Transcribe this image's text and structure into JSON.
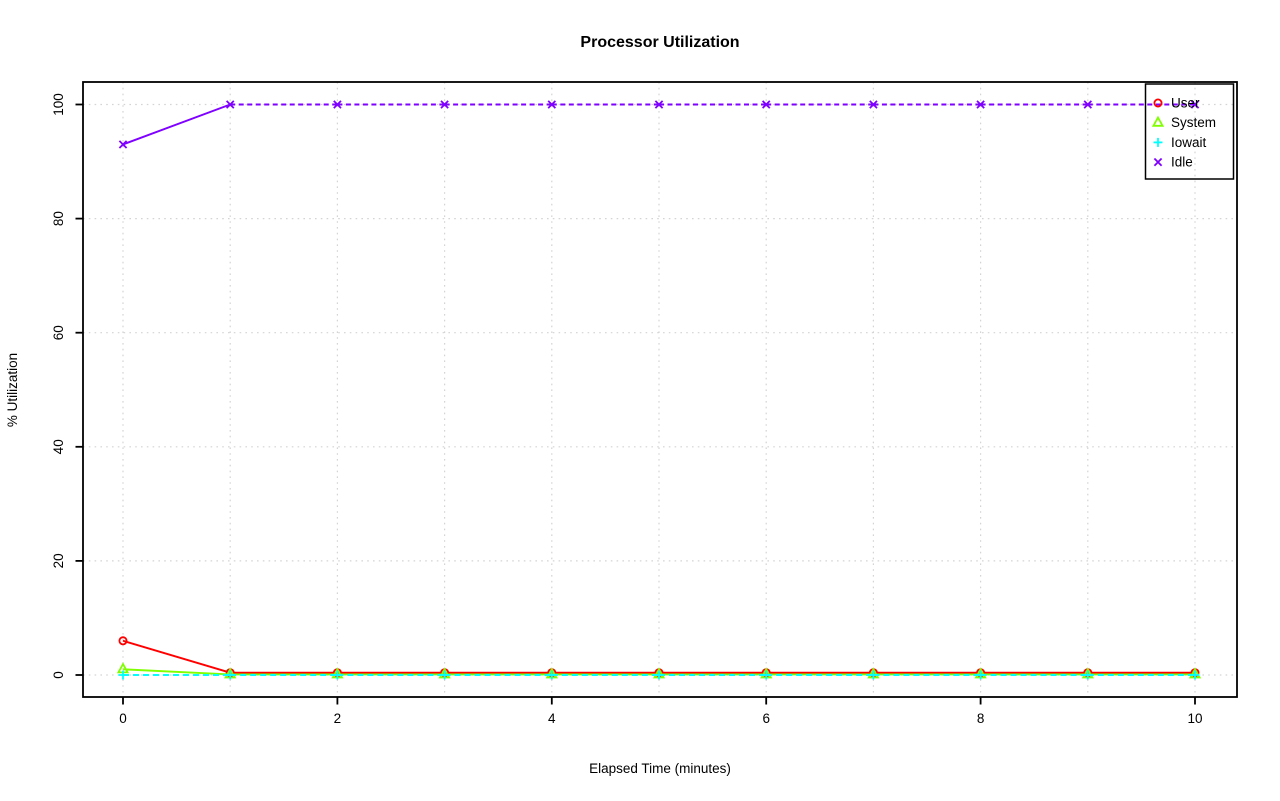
{
  "title": "Processor Utilization",
  "chart_data": {
    "type": "line",
    "title": "Processor Utilization",
    "xlabel": "Elapsed Time (minutes)",
    "ylabel": "% Utilization",
    "x": [
      0,
      1,
      2,
      3,
      4,
      5,
      6,
      7,
      8,
      9,
      10
    ],
    "x_ticks": [
      0,
      2,
      4,
      6,
      8,
      10
    ],
    "y_ticks": [
      0,
      20,
      40,
      60,
      80,
      100
    ],
    "xlim": [
      0,
      10
    ],
    "ylim": [
      0,
      100
    ],
    "grid": "dotted light-gray; vertical lines at every minute 0-10, horizontal lines at every y tick",
    "legend_position": "top-right",
    "background": "#ffffff",
    "grid_color": "#d4d4d4",
    "axis_color": "#000000",
    "series": [
      {
        "name": "User",
        "color": "#FF0000",
        "marker": "circle",
        "line": "solid",
        "values": [
          6,
          0.4,
          0.4,
          0.4,
          0.4,
          0.4,
          0.4,
          0.4,
          0.4,
          0.4,
          0.4
        ]
      },
      {
        "name": "System",
        "color": "#80FF00",
        "marker": "triangle",
        "line": "solid",
        "values": [
          1,
          0.1,
          0.1,
          0.1,
          0.1,
          0.1,
          0.1,
          0.1,
          0.1,
          0.1,
          0.1
        ]
      },
      {
        "name": "Iowait",
        "color": "#00FFFF",
        "marker": "plus",
        "line": "dashed",
        "values": [
          0,
          0,
          0,
          0,
          0,
          0,
          0,
          0,
          0,
          0,
          0
        ]
      },
      {
        "name": "Idle",
        "color": "#7F00FF",
        "marker": "x",
        "line": "dashed",
        "values": [
          93,
          100,
          100,
          100,
          100,
          100,
          100,
          100,
          100,
          100,
          100
        ]
      }
    ]
  }
}
